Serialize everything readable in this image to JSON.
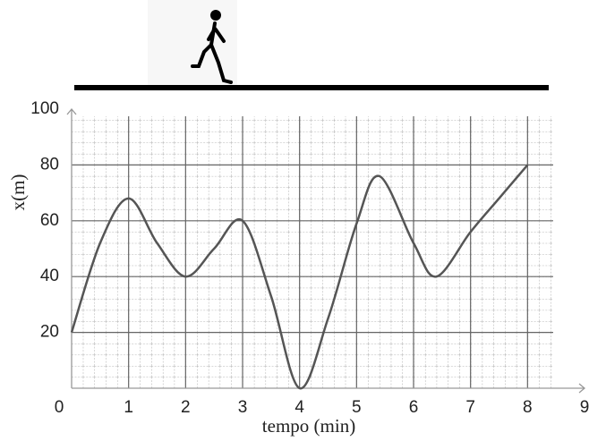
{
  "chart_data": {
    "type": "line",
    "x": [
      0,
      0.5,
      1,
      1.5,
      2,
      2.5,
      3,
      3.5,
      4,
      4.5,
      5,
      5.4,
      6,
      6.4,
      7,
      7.5,
      8
    ],
    "series": [
      {
        "name": null,
        "color": "#555555",
        "values": [
          20,
          52,
          68,
          52,
          40,
          50,
          60,
          33,
          0,
          25,
          59,
          76,
          52,
          40,
          56,
          68,
          80
        ]
      }
    ],
    "xlabel": "tempo (min)",
    "ylabel": "x(m)",
    "xlim": [
      0,
      9
    ],
    "ylim": [
      0,
      100
    ],
    "xticks": [
      0,
      1,
      2,
      3,
      4,
      5,
      6,
      7,
      8,
      9
    ],
    "yticks": [
      20,
      40,
      60,
      80,
      100
    ],
    "grid": true
  }
}
